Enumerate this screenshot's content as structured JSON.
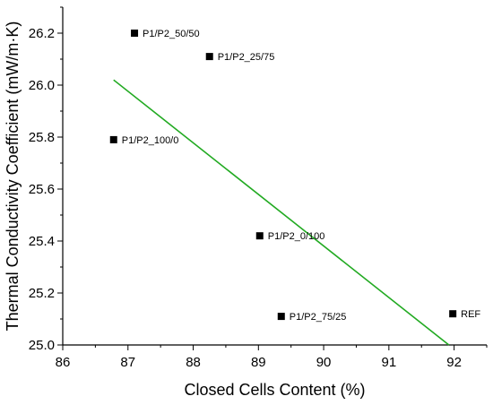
{
  "chart_data": {
    "type": "scatter",
    "title": "",
    "xlabel": "Closed Cells Content (%)",
    "ylabel": "Thermal Conductivity Coefficient (mW/m·K)",
    "xlim": [
      86,
      92.5
    ],
    "ylim": [
      25.0,
      26.3
    ],
    "x_ticks": [
      86,
      87,
      88,
      89,
      90,
      91,
      92
    ],
    "y_ticks": [
      25.0,
      25.2,
      25.4,
      25.6,
      25.8,
      26.0,
      26.2
    ],
    "grid": false,
    "marker_color": "#000000",
    "series": [
      {
        "points": [
          {
            "x": 87.1,
            "y": 26.2,
            "label": "P1/P2_50/50"
          },
          {
            "x": 88.25,
            "y": 26.11,
            "label": "P1/P2_25/75"
          },
          {
            "x": 86.78,
            "y": 25.79,
            "label": "P1/P2_100/0"
          },
          {
            "x": 89.02,
            "y": 25.42,
            "label": "P1/P2_0/100"
          },
          {
            "x": 89.35,
            "y": 25.11,
            "label": "P1/P2_75/25"
          },
          {
            "x": 91.98,
            "y": 25.12,
            "label": "REF"
          }
        ]
      }
    ],
    "fit_line": {
      "color": "#22aa22",
      "x": [
        86.78,
        91.92
      ],
      "y": [
        26.02,
        25.0
      ]
    }
  }
}
